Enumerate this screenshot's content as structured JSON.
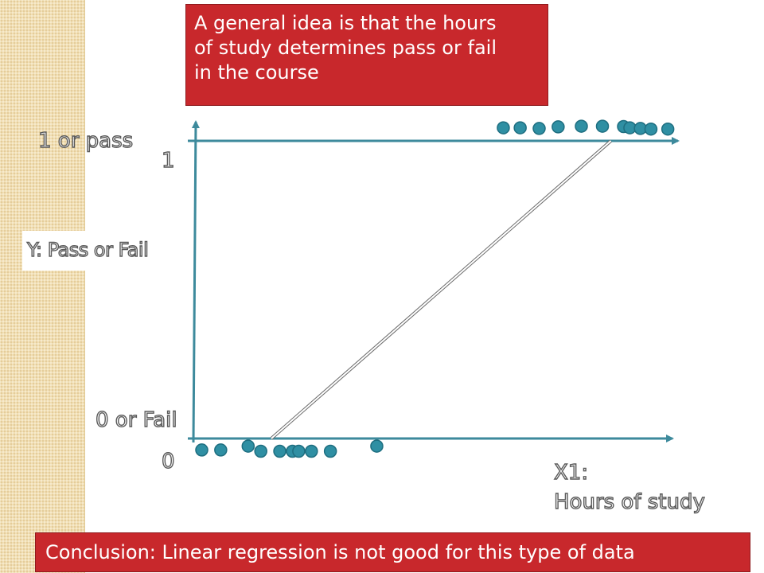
{
  "callouts": {
    "top_lines": [
      "A general idea is that the hours",
      "of study determines pass or fail",
      "in the course"
    ],
    "bottom": "Conclusion: Linear regression is not good for this type of data"
  },
  "labels": {
    "pass": "1 or pass",
    "one": "1",
    "fail": "0 or Fail",
    "zero": "0",
    "y_axis": "Y: Pass or Fail",
    "x_axis_line1": "X1:",
    "x_axis_line2": "Hours of study"
  },
  "colors": {
    "axis": "#3d8a9c",
    "point": "#2f8fa3",
    "point_stroke": "#1e6e80",
    "callout": "#c8282c",
    "left_strip": "#f1dfb4"
  },
  "chart_data": {
    "type": "scatter",
    "title": "",
    "xlabel": "X1: Hours of study",
    "ylabel": "Y: Pass or Fail",
    "y_categories": [
      "0 or Fail",
      "1 or pass"
    ],
    "series": [
      {
        "y": 0,
        "x": [
          1,
          1.9,
          3.2,
          3.8,
          4.7,
          5.3,
          5.6,
          6.2,
          7.1,
          9.3
        ]
      },
      {
        "y": 1,
        "x": [
          15.3,
          16.1,
          17,
          17.9,
          19,
          20,
          21,
          21.3,
          21.8,
          22.3,
          23.1
        ]
      }
    ],
    "regression_line": {
      "x": [
        4.3,
        20.4
      ],
      "y": [
        0,
        1
      ]
    },
    "grid": false,
    "legend": "none"
  }
}
